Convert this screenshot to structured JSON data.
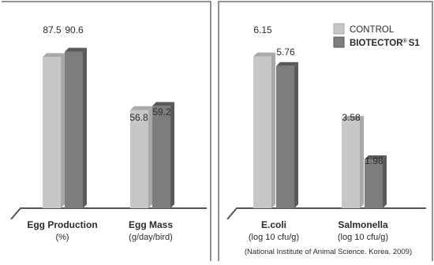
{
  "chart_data": [
    {
      "type": "bar",
      "categories": [
        "Egg Production",
        "Egg Mass"
      ],
      "category_sublabels": [
        "(%)",
        "(g/day/bird)"
      ],
      "series": [
        {
          "name": "CONTROL",
          "values": [
            87.5,
            56.8
          ],
          "value_labels": [
            "87.5",
            "56.8"
          ]
        },
        {
          "name": "BIOTECTOR® S1",
          "values": [
            90.6,
            59.2
          ],
          "value_labels": [
            "90.6",
            "59.2"
          ]
        }
      ],
      "ylim": [
        0,
        100
      ],
      "grid": false
    },
    {
      "type": "bar",
      "categories": [
        "E.coli",
        "Salmonella"
      ],
      "category_sublabels": [
        "(log 10 cfu/g)",
        "(log 10 cfu/g)"
      ],
      "series": [
        {
          "name": "CONTROL",
          "values": [
            6.15,
            3.58
          ],
          "value_labels": [
            "6.15",
            "3.58"
          ]
        },
        {
          "name": "BIOTECTOR® S1",
          "values": [
            5.76,
            1.98
          ],
          "value_labels": [
            "5.76",
            "1.98"
          ]
        }
      ],
      "ylim": [
        0,
        7
      ],
      "grid": false,
      "legend_position": "top-right"
    }
  ],
  "legend": {
    "control_label": "CONTROL",
    "biotector_label": "BIOTECTOR",
    "biotector_reg": "®",
    "biotector_suffix": "S1"
  },
  "source_note": "(National Institute of Animal Science. Korea. 2009)",
  "colors": {
    "control_face": "#c7c7c7",
    "control_side": "#a9a9a9",
    "biotector_face": "#7d7d7d",
    "biotector_side": "#5a5a5a",
    "axis": "#555555",
    "text": "#2b2b2b",
    "border": "#6e6e6e"
  }
}
